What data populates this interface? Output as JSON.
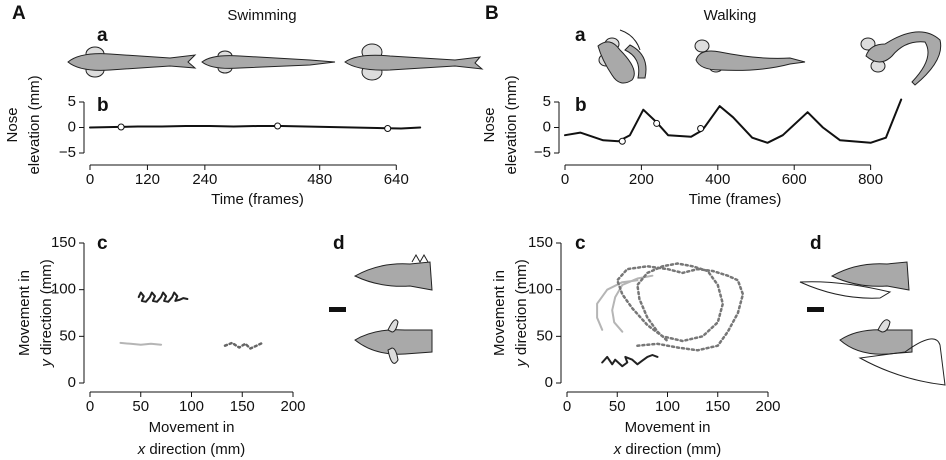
{
  "figure": {
    "left_label": "A",
    "right_label": "B",
    "left_title": "Swimming",
    "right_title": "Walking",
    "left_a": "a",
    "right_a": "a",
    "left_d": "d",
    "right_d": "d"
  },
  "chart_data": [
    {
      "type": "line",
      "panel_label": "b",
      "ylabel": [
        "Nose",
        "elevation (mm)"
      ],
      "xlabel": "Time (frames)",
      "xlim": [
        0,
        700
      ],
      "ylim": [
        -5,
        6
      ],
      "xticks": [
        0,
        120,
        240,
        480,
        640
      ],
      "yticks": [
        {
          "value": -5,
          "label": "−5"
        },
        0,
        5
      ],
      "series": [
        {
          "color": "#111111",
          "style": "solid",
          "x": [
            0,
            50,
            100,
            150,
            200,
            250,
            300,
            350,
            400,
            450,
            500,
            550,
            600,
            650,
            690
          ],
          "values": [
            0,
            0.1,
            0.2,
            0.2,
            0.3,
            0.3,
            0.2,
            0.3,
            0.3,
            0.2,
            0.1,
            0,
            -0.1,
            -0.2,
            0
          ]
        }
      ],
      "markers": {
        "x": [
          65,
          392,
          622
        ],
        "values": [
          0.1,
          0.3,
          -0.2
        ]
      }
    },
    {
      "type": "line",
      "panel_label": "b",
      "ylabel": [
        "Nose",
        "elevation (mm)"
      ],
      "xlabel": "Time (frames)",
      "xlim": [
        0,
        890
      ],
      "ylim": [
        -5,
        6
      ],
      "xticks": [
        0,
        200,
        400,
        600,
        800
      ],
      "yticks": [
        {
          "value": -5,
          "label": "−5"
        },
        0,
        5
      ],
      "series": [
        {
          "color": "#111111",
          "style": "solid",
          "x": [
            0,
            40,
            100,
            140,
            170,
            205,
            240,
            270,
            330,
            360,
            405,
            440,
            490,
            530,
            570,
            635,
            675,
            720,
            800,
            840,
            880
          ],
          "values": [
            -1.5,
            -1,
            -2.5,
            -2.7,
            -1.5,
            3.5,
            1,
            -1.5,
            -1.8,
            -0.5,
            4.2,
            2,
            -2,
            -3,
            -1.5,
            3,
            0,
            -2.5,
            -3,
            -2,
            5.5
          ]
        }
      ],
      "markers": {
        "x": [
          150,
          240,
          355
        ],
        "values": [
          -2.7,
          0.8,
          -0.2
        ]
      }
    },
    {
      "type": "line",
      "panel_label": "c",
      "ylabel": [
        "Movement in",
        "y",
        " direction (mm)"
      ],
      "xlabel": [
        "Movement in",
        "x",
        " direction (mm)"
      ],
      "xlim": [
        0,
        200
      ],
      "ylim": [
        0,
        150
      ],
      "xticks": [
        0,
        50,
        100,
        150,
        200
      ],
      "yticks": [
        0,
        50,
        100,
        150
      ],
      "series": [
        {
          "color": "#222222",
          "style": "solid",
          "x": [
            48,
            50,
            53,
            51,
            55,
            59,
            61,
            64,
            62,
            66,
            70,
            72,
            75,
            73,
            77,
            81,
            83,
            86,
            84,
            88,
            92,
            96
          ],
          "values": [
            92,
            97,
            93,
            88,
            87,
            92,
            97,
            93,
            88,
            87,
            92,
            97,
            93,
            88,
            87,
            92,
            97,
            93,
            88,
            89,
            91,
            90
          ]
        },
        {
          "color": "#b5b5b5",
          "style": "solid",
          "x": [
            30,
            40,
            50,
            60,
            70
          ],
          "values": [
            43,
            42,
            41,
            42,
            41
          ]
        },
        {
          "color": "#666666",
          "style": "dotted",
          "x": [
            133,
            140,
            147,
            153,
            158,
            164,
            170
          ],
          "values": [
            40,
            43,
            38,
            42,
            37,
            40,
            43
          ]
        }
      ]
    },
    {
      "type": "line",
      "panel_label": "c",
      "ylabel": [
        "Movement in",
        "y",
        " direction (mm)"
      ],
      "xlabel": [
        "Movement in",
        "x",
        " direction (mm)"
      ],
      "xlim": [
        0,
        200
      ],
      "ylim": [
        0,
        150
      ],
      "xticks": [
        0,
        50,
        100,
        150,
        200
      ],
      "yticks": [
        0,
        50,
        100,
        150
      ],
      "series": [
        {
          "color": "#b5b5b5",
          "style": "solid",
          "x": [
            70,
            55,
            40,
            30,
            30,
            35,
            null,
            85,
            70,
            55,
            48,
            45,
            47,
            55
          ],
          "values": [
            110,
            108,
            100,
            85,
            70,
            57,
            null,
            115,
            112,
            105,
            92,
            78,
            65,
            55
          ]
        },
        {
          "color": "#777777",
          "style": "dotted",
          "x": [
            70,
            90,
            110,
            130,
            150,
            160,
            170,
            175,
            170,
            160,
            145,
            130,
            115,
            100,
            80,
            60,
            50,
            55,
            65,
            80,
            95,
            115,
            135,
            150,
            155,
            150,
            140,
            125,
            110,
            95,
            80,
            70,
            72,
            80,
            90,
            100
          ],
          "values": [
            40,
            42,
            38,
            35,
            40,
            55,
            75,
            95,
            110,
            115,
            120,
            122,
            118,
            122,
            125,
            122,
            110,
            95,
            80,
            62,
            50,
            45,
            50,
            65,
            85,
            105,
            120,
            125,
            128,
            125,
            118,
            105,
            90,
            70,
            55,
            45
          ]
        },
        {
          "color": "#222222",
          "style": "solid",
          "x": [
            35,
            40,
            45,
            48,
            55,
            60,
            58,
            65,
            70,
            75,
            80,
            85,
            90
          ],
          "values": [
            22,
            28,
            20,
            25,
            18,
            22,
            28,
            25,
            20,
            24,
            28,
            30,
            28
          ]
        }
      ]
    }
  ]
}
